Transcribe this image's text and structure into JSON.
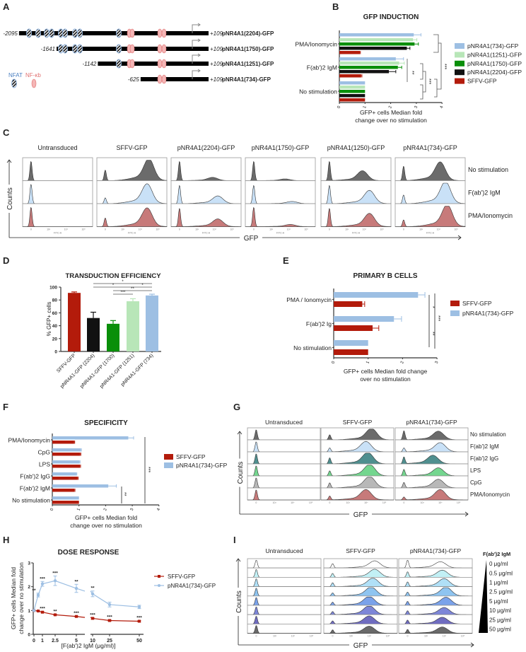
{
  "panel_letters": [
    "A",
    "B",
    "C",
    "D",
    "E",
    "F",
    "G",
    "H",
    "I"
  ],
  "colors": {
    "sffv": "#b31b0b",
    "p734": "#9dbfe3",
    "p1251": "#b8e6b8",
    "p1750": "#0a8f0a",
    "p2204": "#111111",
    "nfat": "#4a7fc1",
    "nfkb": "#e07070"
  },
  "panel_a": {
    "legend": {
      "nfat": "NFAT",
      "nfkb": "NF-κb"
    },
    "constructs": [
      {
        "start": -2095,
        "start_label": "-2095",
        "end_label": "+109",
        "name": "pNR4A1(2204)-GFP"
      },
      {
        "start": -1641,
        "start_label": "-1641",
        "end_label": "+109",
        "name": "pNR4A1(1750)-GFP"
      },
      {
        "start": -1142,
        "start_label": "-1142",
        "end_label": "+109",
        "name": "pNR4A1(1251)-GFP"
      },
      {
        "start": -625,
        "start_label": "-625",
        "end_label": "+109",
        "name": "pNR4A1(734)-GFP"
      }
    ],
    "nfat_sites_bp": [
      -1974,
      -1863,
      -1761,
      -1701,
      -1590,
      -1538,
      -1419,
      -1359,
      -889
    ],
    "nfkb_sites_bp": [
      -761,
      -726,
      -393,
      -342
    ]
  },
  "chart_data": [
    {
      "panel": "B",
      "type": "bar",
      "orientation": "horizontal",
      "title": "GFP INDUCTION",
      "xlabel": [
        "GFP+ cells Median fold",
        "change over no stimulation"
      ],
      "xlim": [
        0,
        4
      ],
      "xticks": [
        "0",
        "1",
        "2",
        "3",
        "4"
      ],
      "categories": [
        "PMA/Ionomycin",
        "F(ab')2 IgM",
        "No stimulation"
      ],
      "series": [
        {
          "name": "pNR4A1(734)-GFP",
          "color_key": "p734",
          "values": [
            2.9,
            2.2,
            1.0
          ],
          "errors": [
            0.28,
            0.3,
            0
          ]
        },
        {
          "name": "pNR4A1(1251)-GFP",
          "color_key": "p1251",
          "values": [
            2.87,
            2.33,
            1.0
          ],
          "errors": [
            0.15,
            0.2,
            0
          ]
        },
        {
          "name": "pNR4A1(1750)-GFP",
          "color_key": "p1750",
          "values": [
            2.93,
            2.28,
            1.0
          ],
          "errors": [
            0.15,
            0.15,
            0
          ]
        },
        {
          "name": "pNR4A1(2204)-GFP",
          "color_key": "p2204",
          "values": [
            2.63,
            1.93,
            1.0
          ],
          "errors": [
            0.12,
            0.27,
            0
          ]
        },
        {
          "name": "SFFV-GFP",
          "color_key": "sffv",
          "values": [
            0.8,
            0.85,
            1.0
          ],
          "errors": [
            0.02,
            0.03,
            0
          ]
        }
      ],
      "significance": [
        "**",
        "***",
        "***"
      ],
      "legend_position": "right"
    },
    {
      "panel": "D",
      "type": "bar",
      "orientation": "vertical",
      "title": "TRANSDUCTION EFFICIENCY",
      "ylabel": "% GFP+ cells",
      "ylim": [
        0,
        100
      ],
      "yticks": [
        "0",
        "20",
        "40",
        "60",
        "80",
        "100"
      ],
      "categories": [
        "SFFV-GFP",
        "pNR4A1-GFP (2204)",
        "pNR4A1-GFP (1700)",
        "pNR4A1-GFP (1251)",
        "pNR4A1-GFP (734)"
      ],
      "color_keys": [
        "sffv",
        "p2204",
        "p1750",
        "p1251",
        "p734"
      ],
      "values": [
        91,
        52,
        43,
        78,
        87
      ],
      "errors": [
        1.5,
        9,
        5,
        4,
        2
      ],
      "significance": [
        {
          "from": 1,
          "to": 4,
          "label": "*"
        },
        {
          "from": 1,
          "to": 3,
          "label": "*"
        },
        {
          "from": 3,
          "to": 4,
          "label": "*"
        },
        {
          "from": 2,
          "to": 4,
          "label": "**"
        },
        {
          "from": 2,
          "to": 3,
          "label": "***"
        }
      ]
    },
    {
      "panel": "E",
      "type": "bar",
      "orientation": "horizontal",
      "title": "PRIMARY B CELLS",
      "xlabel": [
        "GFP+ cells Median fold change",
        "over no stimulation"
      ],
      "xlim": [
        0,
        3
      ],
      "xticks": [
        "0",
        "1",
        "2",
        "3"
      ],
      "categories": [
        "PMA / Ionomycin",
        "F(ab')2 Ig",
        "No stimulation"
      ],
      "series": [
        {
          "name": "pNR4A1(734)-GFP",
          "color_key": "p734",
          "values": [
            2.45,
            1.75,
            1.0
          ],
          "errors": [
            0.2,
            0.22,
            0
          ]
        },
        {
          "name": "SFFV-GFP",
          "color_key": "sffv",
          "values": [
            0.83,
            1.13,
            1.0
          ],
          "errors": [
            0.07,
            0.18,
            0
          ]
        }
      ],
      "legend": [
        "SFFV-GFP",
        "pNR4A1(734)-GFP"
      ],
      "significance": [
        "*",
        "**",
        "***"
      ]
    },
    {
      "panel": "F",
      "type": "bar",
      "orientation": "horizontal",
      "title": "SPECIFICITY",
      "xlabel": [
        "GFP+ cells Median fold",
        "change over no stimulation"
      ],
      "xlim": [
        0,
        4
      ],
      "xticks": [
        "0",
        "1",
        "2",
        "3",
        "4"
      ],
      "categories": [
        "PMA/Ionomycin",
        "CpG",
        "LPS",
        "F(ab')2 IgG",
        "F(ab')2 IgM",
        "No stimulation"
      ],
      "series": [
        {
          "name": "pNR4A1(734)-GFP",
          "color_key": "p734",
          "values": [
            2.85,
            1.07,
            1.02,
            0.9,
            2.1,
            1.0
          ],
          "errors": [
            0.2,
            0.02,
            0.02,
            0.02,
            0.3,
            0
          ]
        },
        {
          "name": "SFFV-GFP",
          "color_key": "sffv",
          "values": [
            0.82,
            1.05,
            1.04,
            0.95,
            0.83,
            1.0
          ],
          "errors": [
            0.02,
            0.02,
            0.02,
            0.02,
            0.02,
            0
          ]
        }
      ],
      "legend": [
        "SFFV-GFP",
        "pNR4A1(734)-GFP"
      ],
      "significance": [
        "**",
        "***"
      ]
    },
    {
      "panel": "H",
      "type": "line",
      "title": "DOSE RESPONSE",
      "xlabel": "[F(ab')2 IgM (μg/ml)]",
      "ylabel": [
        "GFP+ cells Median fold",
        "change over no stimulation"
      ],
      "ylim": [
        0,
        3
      ],
      "yticks": [
        "0",
        "1",
        "2",
        "3"
      ],
      "x": [
        0,
        0.5,
        1,
        2.5,
        5,
        10,
        25,
        50
      ],
      "xtick_labels": [
        "0",
        "1",
        "2.5",
        "5",
        "10",
        "25",
        "50"
      ],
      "series": [
        {
          "name": "SFFV-GFP",
          "color_key": "sffv",
          "marker": "square",
          "values": [
            1.0,
            0.98,
            0.93,
            0.82,
            0.75,
            0.67,
            0.58,
            0.55
          ],
          "errors": [
            0.02,
            0.02,
            0.03,
            0.02,
            0.02,
            0.03,
            0.03,
            0.03
          ],
          "stars": [
            "",
            "",
            "***",
            "**",
            "***",
            "***",
            "***",
            "***"
          ]
        },
        {
          "name": "pNR4A1(734)-GFP",
          "color_key": "p734",
          "marker": "circle",
          "values": [
            1.0,
            1.65,
            2.12,
            2.25,
            1.93,
            1.7,
            1.25,
            1.15
          ],
          "errors": [
            0.02,
            0.08,
            0.1,
            0.2,
            0.17,
            0.12,
            0.1,
            0.07
          ],
          "stars": [
            "",
            "**",
            "***",
            "***",
            "**",
            "**",
            "",
            ""
          ]
        }
      ]
    }
  ],
  "flow": {
    "hist_ticks": [
      "0",
      "10³",
      "10⁴",
      "10⁵"
    ],
    "hist_axis_label": "FITC-A",
    "counts_label": "Counts",
    "gfp_label": "GFP",
    "panel_c": {
      "columns": [
        "Untransduced",
        "SFFV-GFP",
        "pNR4A1(2204)-GFP",
        "pNR4A1(1750)-GFP",
        "pNR4A1(1250)-GFP",
        "pNR4A1(734)-GFP"
      ],
      "rows": [
        "No stimulation",
        "F(ab')2 IgM",
        "PMA/Ionomycin"
      ],
      "row_colors": [
        "#6b6b6b",
        "#c9e1f7",
        "#c77a7a"
      ],
      "histograms": [
        [
          {
            "neg": 1,
            "pos": 0,
            "peak_log10": 4
          },
          {
            "neg": 1,
            "pos": 0,
            "peak_log10": 4
          },
          {
            "neg": 1,
            "pos": 0,
            "peak_log10": 4
          }
        ],
        [
          {
            "neg": 0.55,
            "pos": 1,
            "peak_log10": 4.5
          },
          {
            "neg": 0.3,
            "pos": 0.9,
            "peak_log10": 4.4
          },
          {
            "neg": 0.45,
            "pos": 0.85,
            "peak_log10": 4.4
          }
        ],
        [
          {
            "neg": 1,
            "pos": 0.15,
            "peak_log10": 3.9
          },
          {
            "neg": 0.95,
            "pos": 0.35,
            "peak_log10": 4.2
          },
          {
            "neg": 0.95,
            "pos": 0.35,
            "peak_log10": 4.2
          }
        ],
        [
          {
            "neg": 1,
            "pos": 0.08,
            "peak_log10": 3.8
          },
          {
            "neg": 0.95,
            "pos": 0.1,
            "peak_log10": 4.2
          },
          {
            "neg": 1,
            "pos": 0.1,
            "peak_log10": 4.1
          }
        ],
        [
          {
            "neg": 1,
            "pos": 0.45,
            "peak_log10": 3.9
          },
          {
            "neg": 0.95,
            "pos": 0.6,
            "peak_log10": 4.3
          },
          {
            "neg": 0.95,
            "pos": 0.6,
            "peak_log10": 4.3
          }
        ],
        [
          {
            "neg": 0.75,
            "pos": 0.85,
            "peak_log10": 4.1
          },
          {
            "neg": 0.45,
            "pos": 1,
            "peak_log10": 4.4
          },
          {
            "neg": 0.35,
            "pos": 1,
            "peak_log10": 4.5
          }
        ]
      ]
    },
    "panel_g": {
      "columns": [
        "Untransduced",
        "SFFV-GFP",
        "pNR4A1(734)-GFP"
      ],
      "rows": [
        "No stimulation",
        "F(ab')2 IgM",
        "F(ab')2 IgG",
        "LPS",
        "CpG",
        "PMA/Ionomycin"
      ],
      "row_colors": [
        "#6b6b6b",
        "#c9e1f7",
        "#4f8f8f",
        "#74d68f",
        "#b8b8b8",
        "#c77a7a"
      ],
      "histograms": [
        [
          {
            "neg": 1,
            "pos": 0
          },
          {
            "neg": 1,
            "pos": 0
          },
          {
            "neg": 1,
            "pos": 0
          },
          {
            "neg": 1,
            "pos": 0
          },
          {
            "neg": 1,
            "pos": 0
          },
          {
            "neg": 1,
            "pos": 0
          }
        ],
        [
          {
            "neg": 0.5,
            "pos": 1,
            "peak_log10": 4.3
          },
          {
            "neg": 0.4,
            "pos": 0.9,
            "peak_log10": 4.0
          },
          {
            "neg": 0.6,
            "pos": 1,
            "peak_log10": 4.1
          },
          {
            "neg": 0.5,
            "pos": 1,
            "peak_log10": 4.2
          },
          {
            "neg": 0.5,
            "pos": 1,
            "peak_log10": 4.2
          },
          {
            "neg": 0.4,
            "pos": 0.9,
            "peak_log10": 4.0
          }
        ],
        [
          {
            "neg": 0.9,
            "pos": 0.75,
            "peak_log10": 3.9
          },
          {
            "neg": 0.4,
            "pos": 0.8,
            "peak_log10": 4.0
          },
          {
            "neg": 0.7,
            "pos": 0.75,
            "peak_log10": 3.6
          },
          {
            "neg": 0.65,
            "pos": 0.7,
            "peak_log10": 3.9
          },
          {
            "neg": 0.55,
            "pos": 0.75,
            "peak_log10": 3.9
          },
          {
            "neg": 0.3,
            "pos": 0.9,
            "peak_log10": 4.0
          }
        ]
      ]
    },
    "panel_i": {
      "columns": [
        "Untransduced",
        "SFFV-GFP",
        "pNR4A1(734)-GFP"
      ],
      "legend_title": "F(ab')2 IgM",
      "rows": [
        "0 μg/ml",
        "0.5 μg/ml",
        "1 μg/ml",
        "2.5 μg/ml",
        "5 μg/ml",
        "10 μg/ml",
        "25 μg/ml",
        "50 μg/ml"
      ],
      "row_colors": [
        "#ffffff",
        "#c2f0f5",
        "#b0e0f7",
        "#8ec4f0",
        "#7aa2ea",
        "#7d86d8",
        "#6f6cc0",
        "#6a6a6a"
      ],
      "histograms": [
        [
          {
            "neg": 1,
            "pos": 0
          },
          {
            "neg": 1,
            "pos": 0
          },
          {
            "neg": 1,
            "pos": 0
          },
          {
            "neg": 1,
            "pos": 0
          },
          {
            "neg": 1,
            "pos": 0
          },
          {
            "neg": 1,
            "pos": 0
          },
          {
            "neg": 1,
            "pos": 0
          },
          {
            "neg": 1,
            "pos": 0
          }
        ],
        [
          {
            "neg": 0.55,
            "pos": 0.8,
            "peak_log10": 4.3
          },
          {
            "neg": 0.5,
            "pos": 0.9,
            "peak_log10": 4.3
          },
          {
            "neg": 0.5,
            "pos": 0.95,
            "peak_log10": 4.2
          },
          {
            "neg": 0.4,
            "pos": 1,
            "peak_log10": 4.1
          },
          {
            "neg": 0.4,
            "pos": 1,
            "peak_log10": 4.0
          },
          {
            "neg": 0.4,
            "pos": 1,
            "peak_log10": 4.0
          },
          {
            "neg": 0.4,
            "pos": 0.9,
            "peak_log10": 4.0
          },
          {
            "neg": 0.45,
            "pos": 0.8,
            "peak_log10": 4.0
          }
        ],
        [
          {
            "neg": 1,
            "pos": 0.7,
            "peak_log10": 3.8
          },
          {
            "neg": 0.7,
            "pos": 0.8,
            "peak_log10": 3.9
          },
          {
            "neg": 0.6,
            "pos": 0.9,
            "peak_log10": 4.0
          },
          {
            "neg": 0.5,
            "pos": 1,
            "peak_log10": 4.1
          },
          {
            "neg": 0.5,
            "pos": 0.9,
            "peak_log10": 4.1
          },
          {
            "neg": 0.5,
            "pos": 0.8,
            "peak_log10": 4.0
          },
          {
            "neg": 0.5,
            "pos": 0.75,
            "peak_log10": 3.9
          },
          {
            "neg": 0.5,
            "pos": 0.7,
            "peak_log10": 3.9
          }
        ]
      ]
    }
  }
}
